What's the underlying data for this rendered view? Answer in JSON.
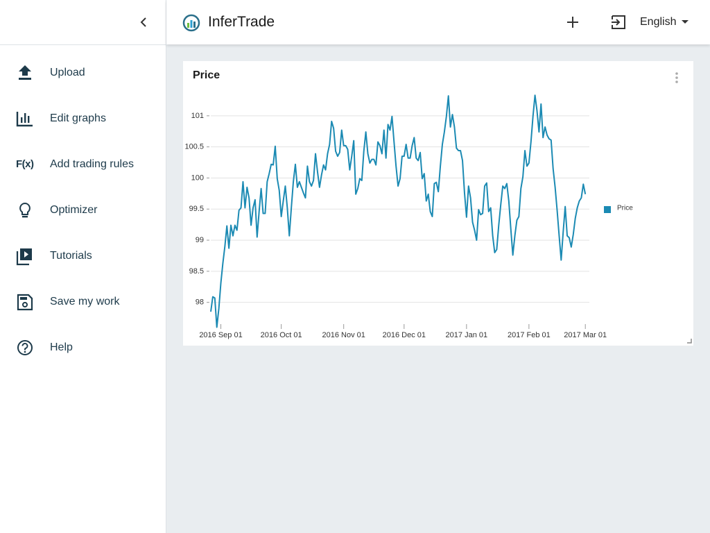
{
  "sidebar": {
    "items": [
      {
        "label": "Upload"
      },
      {
        "label": "Edit graphs"
      },
      {
        "label": "Add trading rules",
        "icon": "F(x)"
      },
      {
        "label": "Optimizer"
      },
      {
        "label": "Tutorials"
      },
      {
        "label": "Save my work"
      },
      {
        "label": "Help"
      }
    ]
  },
  "header": {
    "brand": "InferTrade",
    "language": "English"
  },
  "chart_data": {
    "type": "line",
    "title": "Price",
    "x": [
      "2016-08-27",
      "2016-08-28",
      "2016-08-29",
      "2016-08-30",
      "2016-08-31",
      "2016-09-01",
      "2016-09-02",
      "2016-09-03",
      "2016-09-04",
      "2016-09-05",
      "2016-09-06",
      "2016-09-07",
      "2016-09-08",
      "2016-09-09",
      "2016-09-10",
      "2016-09-11",
      "2016-09-12",
      "2016-09-13",
      "2016-09-14",
      "2016-09-15",
      "2016-09-16",
      "2016-09-17",
      "2016-09-18",
      "2016-09-19",
      "2016-09-20",
      "2016-09-21",
      "2016-09-22",
      "2016-09-23",
      "2016-09-24",
      "2016-09-25",
      "2016-09-26",
      "2016-09-27",
      "2016-09-28",
      "2016-09-29",
      "2016-09-30",
      "2016-10-01",
      "2016-10-02",
      "2016-10-03",
      "2016-10-04",
      "2016-10-05",
      "2016-10-06",
      "2016-10-07",
      "2016-10-08",
      "2016-10-09",
      "2016-10-10",
      "2016-10-11",
      "2016-10-12",
      "2016-10-13",
      "2016-10-14",
      "2016-10-15",
      "2016-10-16",
      "2016-10-17",
      "2016-10-18",
      "2016-10-19",
      "2016-10-20",
      "2016-10-21",
      "2016-10-22",
      "2016-10-23",
      "2016-10-24",
      "2016-10-25",
      "2016-10-26",
      "2016-10-27",
      "2016-10-28",
      "2016-10-29",
      "2016-10-30",
      "2016-10-31",
      "2016-11-01",
      "2016-11-02",
      "2016-11-03",
      "2016-11-04",
      "2016-11-05",
      "2016-11-06",
      "2016-11-07",
      "2016-11-08",
      "2016-11-09",
      "2016-11-10",
      "2016-11-11",
      "2016-11-12",
      "2016-11-13",
      "2016-11-14",
      "2016-11-15",
      "2016-11-16",
      "2016-11-17",
      "2016-11-18",
      "2016-11-19",
      "2016-11-20",
      "2016-11-21",
      "2016-11-22",
      "2016-11-23",
      "2016-11-24",
      "2016-11-25",
      "2016-11-26",
      "2016-11-27",
      "2016-11-28",
      "2016-11-29",
      "2016-11-30",
      "2016-12-01",
      "2016-12-02",
      "2016-12-03",
      "2016-12-04",
      "2016-12-05",
      "2016-12-06",
      "2016-12-07",
      "2016-12-08",
      "2016-12-09",
      "2016-12-10",
      "2016-12-11",
      "2016-12-12",
      "2016-12-13",
      "2016-12-14",
      "2016-12-15",
      "2016-12-16",
      "2016-12-17",
      "2016-12-18",
      "2016-12-19",
      "2016-12-20",
      "2016-12-21",
      "2016-12-22",
      "2016-12-23",
      "2016-12-24",
      "2016-12-25",
      "2016-12-26",
      "2016-12-27",
      "2016-12-28",
      "2016-12-29",
      "2016-12-30",
      "2016-12-31",
      "2017-01-01",
      "2017-01-02",
      "2017-01-03",
      "2017-01-04",
      "2017-01-05",
      "2017-01-06",
      "2017-01-07",
      "2017-01-08",
      "2017-01-09",
      "2017-01-10",
      "2017-01-11",
      "2017-01-12",
      "2017-01-13",
      "2017-01-14",
      "2017-01-15",
      "2017-01-16",
      "2017-01-17",
      "2017-01-18",
      "2017-01-19",
      "2017-01-20",
      "2017-01-21",
      "2017-01-22",
      "2017-01-23",
      "2017-01-24",
      "2017-01-25",
      "2017-01-26",
      "2017-01-27",
      "2017-01-28",
      "2017-01-29",
      "2017-01-30",
      "2017-01-31",
      "2017-02-01",
      "2017-02-02",
      "2017-02-03",
      "2017-02-04",
      "2017-02-05",
      "2017-02-06",
      "2017-02-07",
      "2017-02-08",
      "2017-02-09",
      "2017-02-10",
      "2017-02-11",
      "2017-02-12",
      "2017-02-13",
      "2017-02-14",
      "2017-02-15",
      "2017-02-16",
      "2017-02-17",
      "2017-02-18",
      "2017-02-19",
      "2017-02-20",
      "2017-02-21",
      "2017-02-22",
      "2017-02-23",
      "2017-02-24",
      "2017-02-25",
      "2017-02-26",
      "2017-02-27",
      "2017-02-28",
      "2017-03-01"
    ],
    "series": [
      {
        "name": "Price",
        "color": "#1b8ab3",
        "values": [
          97.85,
          98.09,
          98.07,
          97.6,
          97.9,
          98.31,
          98.63,
          98.9,
          99.23,
          98.87,
          99.24,
          99.07,
          99.24,
          99.16,
          99.48,
          99.52,
          99.94,
          99.52,
          99.85,
          99.68,
          99.24,
          99.52,
          99.65,
          99.05,
          99.46,
          99.83,
          99.43,
          99.43,
          99.94,
          100.07,
          100.22,
          100.21,
          100.51,
          99.99,
          99.8,
          99.38,
          99.63,
          99.87,
          99.52,
          99.07,
          99.52,
          99.94,
          100.22,
          99.85,
          99.94,
          99.85,
          99.76,
          99.68,
          100.19,
          99.94,
          99.87,
          99.96,
          100.39,
          100.1,
          99.85,
          100.05,
          100.21,
          100.13,
          100.39,
          100.54,
          100.91,
          100.8,
          100.43,
          100.35,
          100.41,
          100.77,
          100.52,
          100.52,
          100.46,
          100.13,
          100.35,
          100.6,
          99.74,
          99.83,
          99.99,
          99.96,
          100.43,
          100.74,
          100.39,
          100.24,
          100.3,
          100.3,
          100.21,
          100.58,
          100.52,
          100.39,
          100.77,
          100.32,
          100.86,
          100.77,
          100.99,
          100.58,
          100.19,
          99.87,
          99.99,
          100.35,
          100.35,
          100.54,
          100.32,
          100.32,
          100.52,
          100.65,
          100.32,
          100.28,
          100.41,
          99.99,
          100.07,
          99.63,
          99.74,
          99.46,
          99.38,
          99.91,
          99.93,
          99.78,
          100.19,
          100.54,
          100.74,
          100.99,
          101.32,
          100.82,
          101.02,
          100.82,
          100.48,
          100.44,
          100.44,
          100.28,
          99.76,
          99.37,
          99.87,
          99.68,
          99.29,
          99.16,
          99.0,
          99.49,
          99.41,
          99.43,
          99.87,
          99.92,
          99.46,
          99.52,
          99.07,
          98.8,
          98.85,
          99.24,
          99.57,
          99.87,
          99.83,
          99.91,
          99.63,
          99.18,
          98.76,
          99.07,
          99.32,
          99.38,
          99.83,
          100.02,
          100.44,
          100.19,
          100.24,
          100.58,
          100.99,
          101.33,
          101.08,
          100.74,
          101.19,
          100.65,
          100.82,
          100.69,
          100.63,
          100.61,
          100.15,
          99.85,
          99.48,
          99.07,
          98.68,
          99.13,
          99.54,
          99.07,
          99.04,
          98.89,
          99.09,
          99.35,
          99.52,
          99.63,
          99.68,
          99.9,
          99.74
        ]
      }
    ],
    "xlim": [
      "2016-08-27",
      "2017-03-03"
    ],
    "xticks": [
      {
        "value": "2016-09-01",
        "label": "2016 Sep 01"
      },
      {
        "value": "2016-10-01",
        "label": "2016 Oct 01"
      },
      {
        "value": "2016-11-01",
        "label": "2016 Nov 01"
      },
      {
        "value": "2016-12-01",
        "label": "2016 Dec 01"
      },
      {
        "value": "2017-01-01",
        "label": "2017 Jan 01"
      },
      {
        "value": "2017-02-01",
        "label": "2017 Feb 01"
      },
      {
        "value": "2017-03-01",
        "label": "2017 Mar 01"
      }
    ],
    "ylim": [
      97.55,
      101.4
    ],
    "yticks": [
      98,
      98.5,
      99,
      99.5,
      100,
      100.5,
      101
    ],
    "grid": true,
    "legend": "right"
  }
}
